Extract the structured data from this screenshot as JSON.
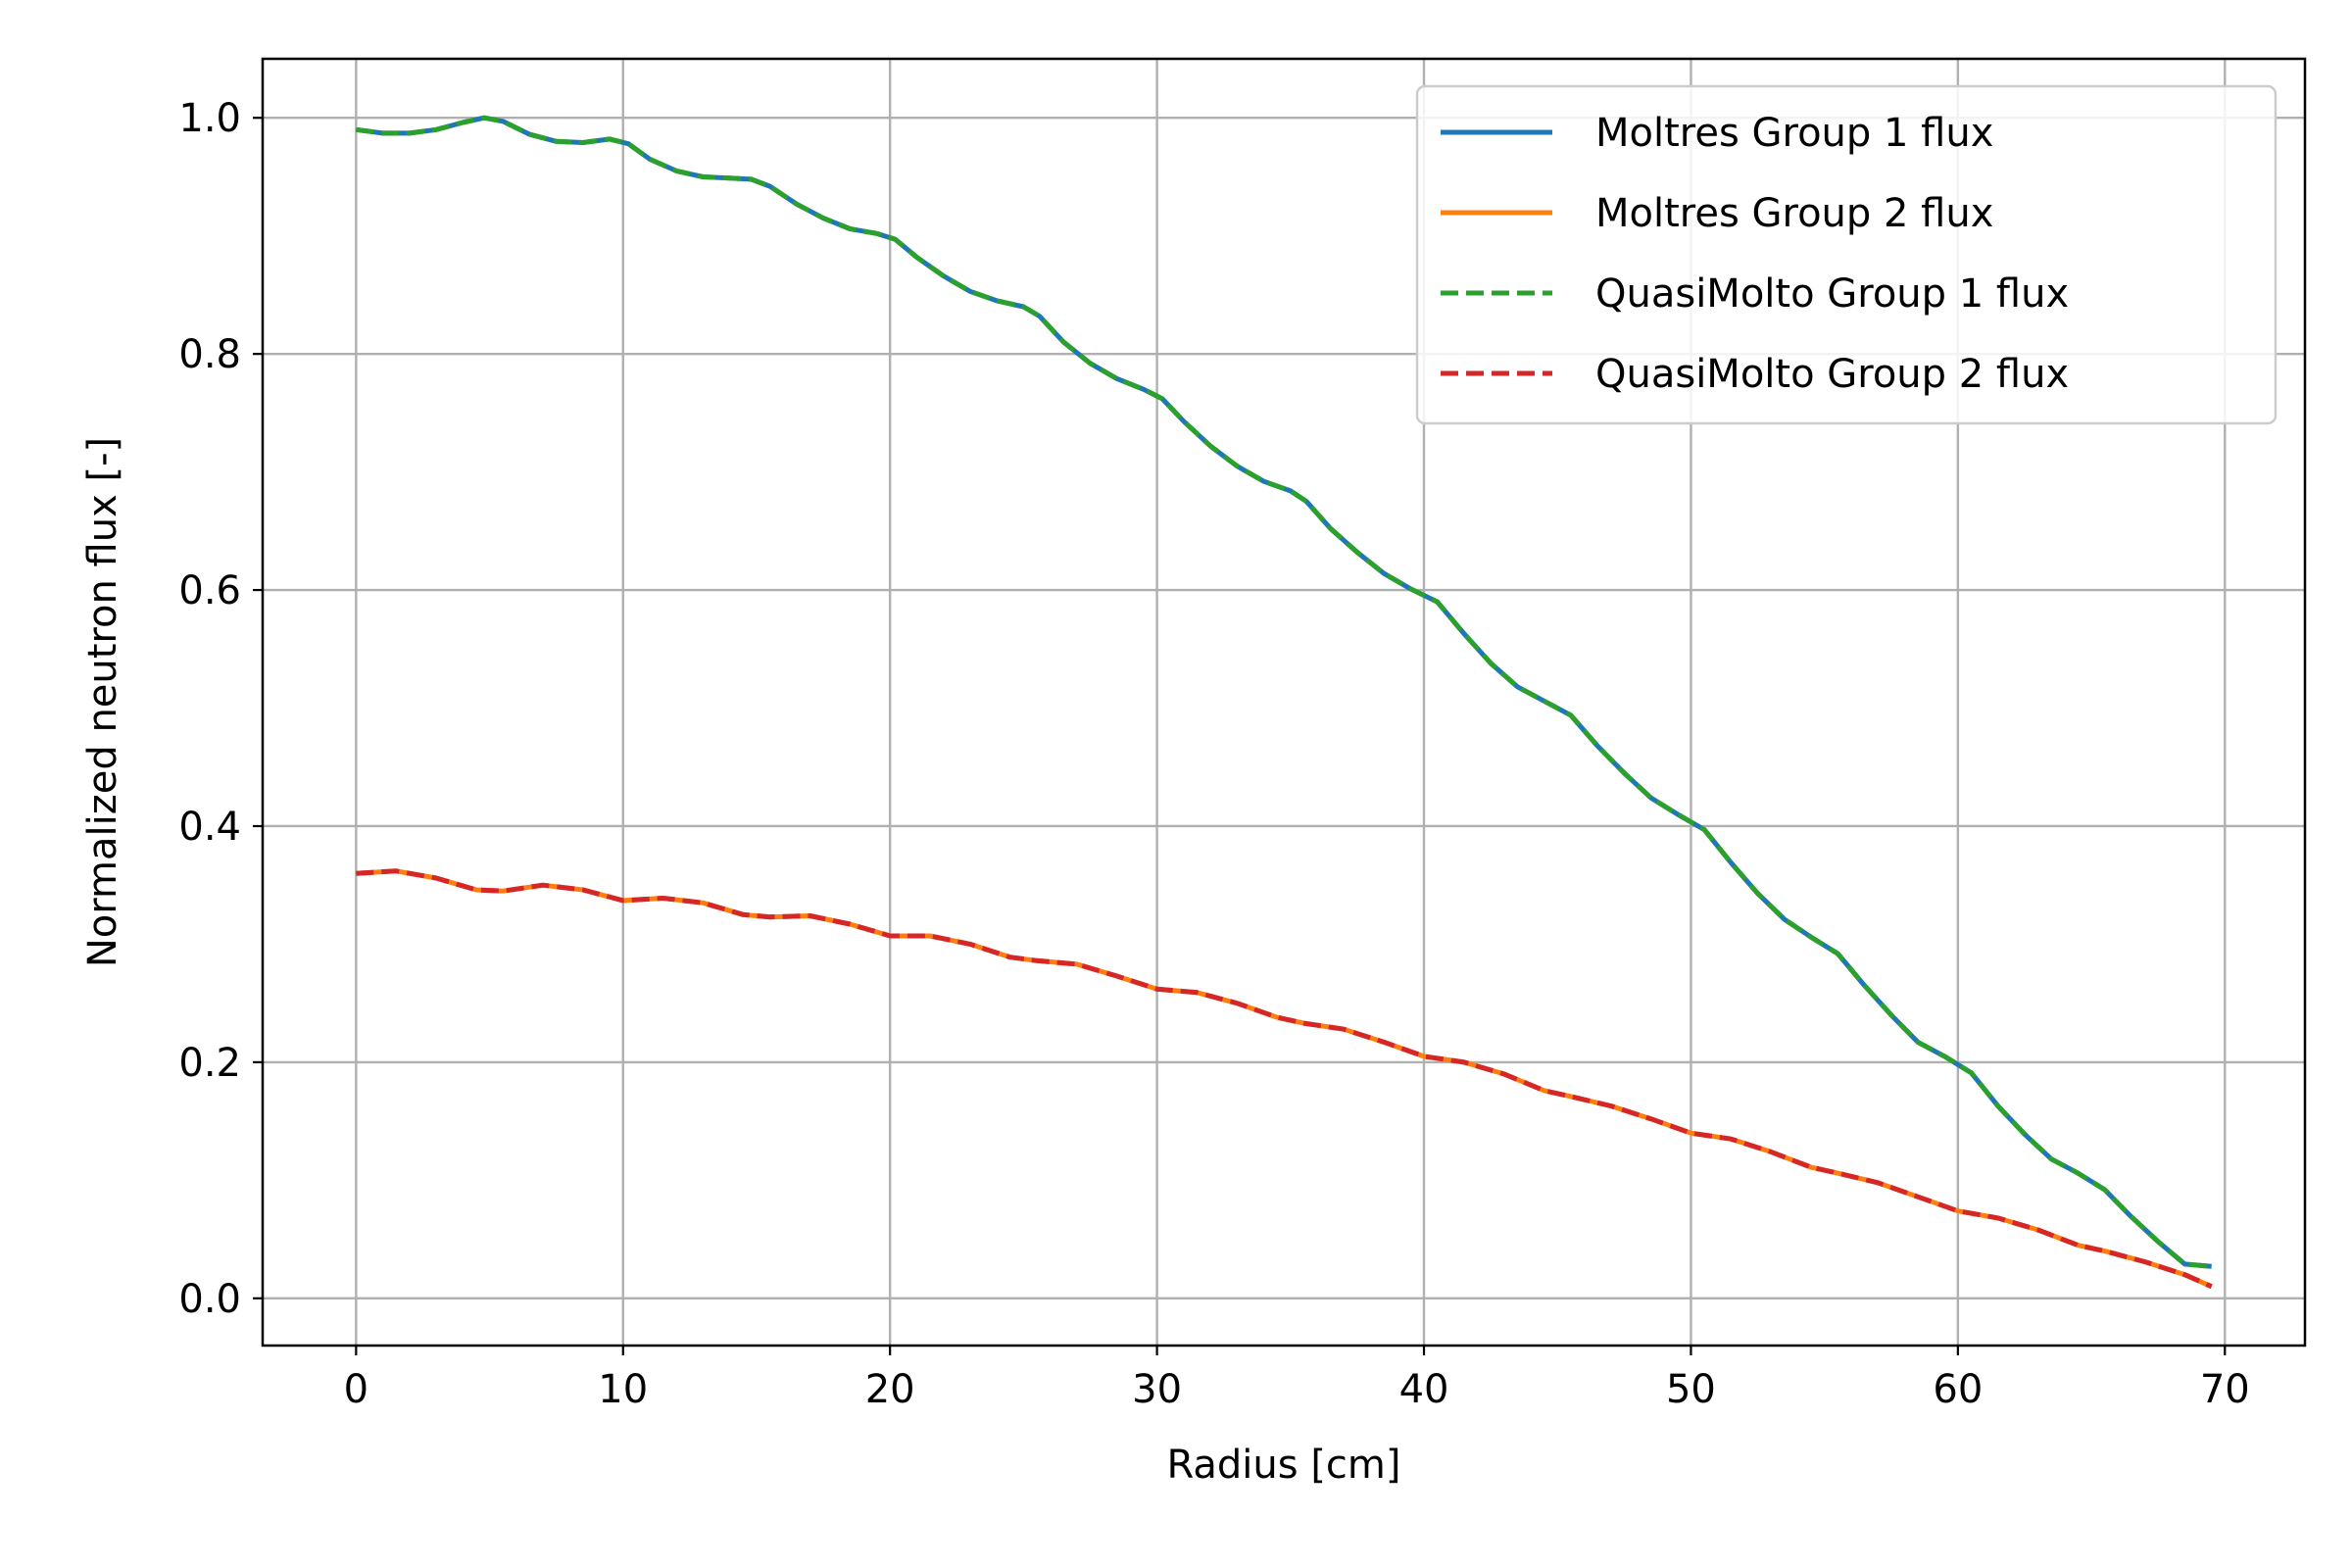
{
  "chart_data": {
    "type": "line",
    "title": "",
    "xlabel": "Radius [cm]",
    "ylabel": "Normalized neutron flux [-]",
    "xlim": [
      -3.5,
      73
    ],
    "ylim": [
      -0.04,
      1.05
    ],
    "xticks": [
      0,
      10,
      20,
      30,
      40,
      50,
      60,
      70
    ],
    "yticks": [
      0.0,
      0.2,
      0.4,
      0.6,
      0.8,
      1.0
    ],
    "xtick_labels": [
      "0",
      "10",
      "20",
      "30",
      "40",
      "50",
      "60",
      "70"
    ],
    "ytick_labels": [
      "0.0",
      "0.2",
      "0.4",
      "0.6",
      "0.8",
      "1.0"
    ],
    "grid": true,
    "legend_position": "top-right",
    "series": [
      {
        "name": "Moltres Group 1 flux",
        "color": "#1f77b4",
        "dash": "solid",
        "x": [
          0,
          1,
          2,
          3,
          4,
          4.8,
          5.5,
          6.5,
          7.5,
          8.5,
          9.5,
          10.2,
          11,
          12,
          13,
          14,
          14.8,
          15.5,
          16.5,
          17.5,
          18.5,
          19.5,
          20.2,
          21,
          22,
          23,
          24,
          25,
          25.6,
          26.5,
          27.5,
          28.5,
          29.5,
          30.2,
          31,
          32,
          33,
          34,
          35,
          35.6,
          36.5,
          37.5,
          38.5,
          39.5,
          40.5,
          41.5,
          42.5,
          43.5,
          44.5,
          45.5,
          46.5,
          47.5,
          48.5,
          49.5,
          50.5,
          51.5,
          52.5,
          53.5,
          54.5,
          55.5,
          56.5,
          57.5,
          58.5,
          59.5,
          60.5,
          61.5,
          62.5,
          63.5,
          64.5,
          65.5,
          66.5,
          67.5,
          68.5,
          69.5
        ],
        "y": [
          0.99,
          0.987,
          0.987,
          0.99,
          0.996,
          1.0,
          0.997,
          0.986,
          0.98,
          0.979,
          0.982,
          0.978,
          0.965,
          0.955,
          0.95,
          0.949,
          0.948,
          0.942,
          0.927,
          0.915,
          0.906,
          0.902,
          0.897,
          0.882,
          0.866,
          0.853,
          0.845,
          0.84,
          0.832,
          0.81,
          0.792,
          0.779,
          0.77,
          0.762,
          0.743,
          0.722,
          0.705,
          0.692,
          0.684,
          0.675,
          0.652,
          0.632,
          0.614,
          0.601,
          0.59,
          0.563,
          0.538,
          0.518,
          0.506,
          0.494,
          0.468,
          0.445,
          0.424,
          0.41,
          0.397,
          0.369,
          0.343,
          0.321,
          0.306,
          0.292,
          0.265,
          0.24,
          0.217,
          0.205,
          0.191,
          0.163,
          0.139,
          0.118,
          0.106,
          0.092,
          0.069,
          0.048,
          0.029,
          0.027
        ]
      },
      {
        "name": "Moltres Group 2 flux",
        "color": "#ff7f0e",
        "dash": "solid",
        "x": [
          0,
          1.5,
          3,
          4.5,
          5.5,
          7,
          8.5,
          10,
          11.5,
          13,
          14.5,
          15.5,
          17,
          18.5,
          20,
          21.5,
          23,
          24.5,
          25.5,
          27,
          28.5,
          30,
          31.5,
          33,
          34.5,
          35.5,
          37,
          38.5,
          40,
          41.5,
          43,
          44.5,
          45.5,
          47,
          48.5,
          50,
          51.5,
          53,
          54.5,
          55.5,
          57,
          58.5,
          60,
          61.5,
          63,
          64.5,
          65.5,
          67,
          68.5,
          69.5
        ],
        "y": [
          0.36,
          0.362,
          0.356,
          0.346,
          0.345,
          0.35,
          0.346,
          0.337,
          0.339,
          0.335,
          0.325,
          0.323,
          0.324,
          0.317,
          0.307,
          0.307,
          0.3,
          0.289,
          0.286,
          0.283,
          0.273,
          0.262,
          0.259,
          0.25,
          0.238,
          0.233,
          0.228,
          0.217,
          0.205,
          0.2,
          0.19,
          0.176,
          0.171,
          0.163,
          0.152,
          0.14,
          0.135,
          0.124,
          0.111,
          0.106,
          0.098,
          0.086,
          0.074,
          0.068,
          0.058,
          0.045,
          0.04,
          0.031,
          0.02,
          0.01
        ]
      },
      {
        "name": "QuasiMolto Group 1 flux",
        "color": "#2ca02c",
        "dash": "dashed",
        "x": [
          0,
          1,
          2,
          3,
          4,
          4.8,
          5.5,
          6.5,
          7.5,
          8.5,
          9.5,
          10.2,
          11,
          12,
          13,
          14,
          14.8,
          15.5,
          16.5,
          17.5,
          18.5,
          19.5,
          20.2,
          21,
          22,
          23,
          24,
          25,
          25.6,
          26.5,
          27.5,
          28.5,
          29.5,
          30.2,
          31,
          32,
          33,
          34,
          35,
          35.6,
          36.5,
          37.5,
          38.5,
          39.5,
          40.5,
          41.5,
          42.5,
          43.5,
          44.5,
          45.5,
          46.5,
          47.5,
          48.5,
          49.5,
          50.5,
          51.5,
          52.5,
          53.5,
          54.5,
          55.5,
          56.5,
          57.5,
          58.5,
          59.5,
          60.5,
          61.5,
          62.5,
          63.5,
          64.5,
          65.5,
          66.5,
          67.5,
          68.5,
          69.5
        ],
        "y": [
          0.99,
          0.987,
          0.987,
          0.99,
          0.996,
          1.0,
          0.997,
          0.986,
          0.98,
          0.979,
          0.982,
          0.978,
          0.965,
          0.955,
          0.95,
          0.949,
          0.948,
          0.942,
          0.927,
          0.915,
          0.906,
          0.902,
          0.897,
          0.882,
          0.866,
          0.853,
          0.845,
          0.84,
          0.832,
          0.81,
          0.792,
          0.779,
          0.77,
          0.762,
          0.743,
          0.722,
          0.705,
          0.692,
          0.684,
          0.675,
          0.652,
          0.632,
          0.614,
          0.601,
          0.59,
          0.563,
          0.538,
          0.518,
          0.506,
          0.494,
          0.468,
          0.445,
          0.424,
          0.41,
          0.397,
          0.369,
          0.343,
          0.321,
          0.306,
          0.292,
          0.265,
          0.24,
          0.217,
          0.205,
          0.191,
          0.163,
          0.139,
          0.118,
          0.106,
          0.092,
          0.069,
          0.048,
          0.029,
          0.027
        ]
      },
      {
        "name": "QuasiMolto Group 2 flux",
        "color": "#d62728",
        "dash": "dashed",
        "x": [
          0,
          1.5,
          3,
          4.5,
          5.5,
          7,
          8.5,
          10,
          11.5,
          13,
          14.5,
          15.5,
          17,
          18.5,
          20,
          21.5,
          23,
          24.5,
          25.5,
          27,
          28.5,
          30,
          31.5,
          33,
          34.5,
          35.5,
          37,
          38.5,
          40,
          41.5,
          43,
          44.5,
          45.5,
          47,
          48.5,
          50,
          51.5,
          53,
          54.5,
          55.5,
          57,
          58.5,
          60,
          61.5,
          63,
          64.5,
          65.5,
          67,
          68.5,
          69.5
        ],
        "y": [
          0.36,
          0.362,
          0.356,
          0.346,
          0.345,
          0.35,
          0.346,
          0.337,
          0.339,
          0.335,
          0.325,
          0.323,
          0.324,
          0.317,
          0.307,
          0.307,
          0.3,
          0.289,
          0.286,
          0.283,
          0.273,
          0.262,
          0.259,
          0.25,
          0.238,
          0.233,
          0.228,
          0.217,
          0.205,
          0.2,
          0.19,
          0.176,
          0.171,
          0.163,
          0.152,
          0.14,
          0.135,
          0.124,
          0.111,
          0.106,
          0.098,
          0.086,
          0.074,
          0.068,
          0.058,
          0.045,
          0.04,
          0.031,
          0.02,
          0.01
        ]
      }
    ]
  }
}
